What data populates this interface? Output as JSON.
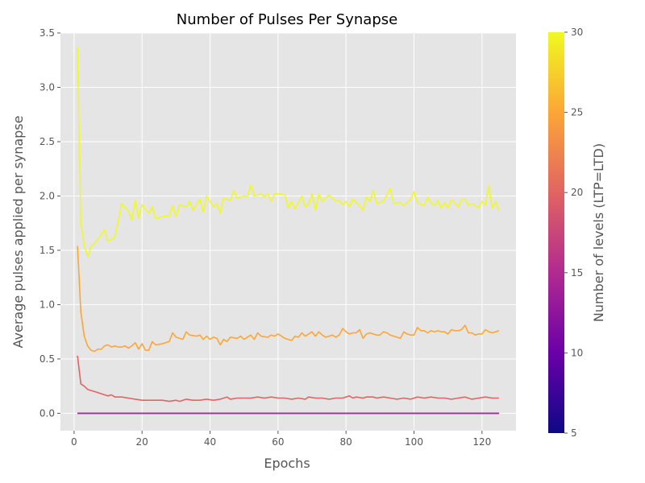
{
  "chart_data": {
    "type": "line",
    "title": "Number of Pulses Per Synapse",
    "xlabel": "Epochs",
    "ylabel": "Average pulses applied per synapse",
    "xlim": [
      -4,
      130
    ],
    "ylim": [
      -0.16,
      3.5
    ],
    "x_ticks": [
      0,
      20,
      40,
      60,
      80,
      100,
      120
    ],
    "x_tick_labels": [
      "0",
      "20",
      "40",
      "60",
      "80",
      "100",
      "120"
    ],
    "y_ticks": [
      0,
      0.5,
      1,
      1.5,
      2,
      2.5,
      3,
      3.5
    ],
    "y_tick_labels": [
      "0.0",
      "0.5",
      "1.0",
      "1.5",
      "2.0",
      "2.5",
      "3.0",
      "3.5"
    ],
    "grid": true,
    "background": "#e5e5e5",
    "colorbar": {
      "label": "Number of levels (LTP=LTD)",
      "colormap": "plasma",
      "range": [
        5,
        30
      ],
      "ticks": [
        5,
        10,
        15,
        20,
        25,
        30
      ],
      "tick_labels": [
        "5",
        "10",
        "15",
        "20",
        "25",
        "30"
      ],
      "stops": [
        "#0d0887",
        "#6a00a8",
        "#b12a90",
        "#e16462",
        "#fca636",
        "#f0f921"
      ]
    },
    "series": [
      {
        "levels": 30,
        "color": "#f0f921",
        "keypoints": [
          [
            1,
            3.37
          ],
          [
            2,
            1.75
          ],
          [
            3,
            1.55
          ],
          [
            4,
            1.44
          ],
          [
            5,
            1.53
          ],
          [
            7,
            1.6
          ],
          [
            9,
            1.69
          ],
          [
            10,
            1.58
          ],
          [
            12,
            1.62
          ],
          [
            14,
            1.93
          ],
          [
            16,
            1.86
          ],
          [
            17,
            1.78
          ],
          [
            18,
            1.96
          ],
          [
            19,
            1.79
          ],
          [
            20,
            1.92
          ],
          [
            22,
            1.84
          ],
          [
            23,
            1.9
          ],
          [
            24,
            1.79
          ],
          [
            26,
            1.81
          ],
          [
            28,
            1.82
          ],
          [
            29,
            1.91
          ],
          [
            30,
            1.81
          ],
          [
            31,
            1.92
          ],
          [
            33,
            1.9
          ],
          [
            34,
            1.95
          ],
          [
            35,
            1.87
          ],
          [
            37,
            1.97
          ],
          [
            38,
            1.85
          ],
          [
            39,
            2.0
          ],
          [
            41,
            1.9
          ],
          [
            42,
            1.93
          ],
          [
            43,
            1.84
          ],
          [
            44,
            1.98
          ],
          [
            46,
            1.96
          ],
          [
            47,
            2.05
          ],
          [
            48,
            1.98
          ],
          [
            50,
            2.0
          ],
          [
            51,
            1.99
          ],
          [
            52,
            2.1
          ],
          [
            53,
            2.0
          ],
          [
            55,
            2.02
          ],
          [
            56,
            1.99
          ],
          [
            57,
            2.02
          ],
          [
            58,
            1.95
          ],
          [
            59,
            2.02
          ],
          [
            61,
            2.02
          ],
          [
            62,
            2.01
          ],
          [
            63,
            1.89
          ],
          [
            64,
            1.95
          ],
          [
            65,
            1.88
          ],
          [
            67,
            2.0
          ],
          [
            68,
            1.9
          ],
          [
            69,
            1.92
          ],
          [
            70,
            2.02
          ],
          [
            71,
            1.87
          ],
          [
            72,
            2.02
          ],
          [
            73,
            1.95
          ],
          [
            75,
            2.01
          ],
          [
            77,
            1.95
          ],
          [
            78,
            1.96
          ],
          [
            79,
            1.92
          ],
          [
            80,
            1.95
          ],
          [
            81,
            1.9
          ],
          [
            82,
            1.97
          ],
          [
            84,
            1.91
          ],
          [
            85,
            1.87
          ],
          [
            86,
            1.99
          ],
          [
            87,
            1.95
          ],
          [
            88,
            2.05
          ],
          [
            89,
            1.93
          ],
          [
            91,
            1.95
          ],
          [
            93,
            2.07
          ],
          [
            94,
            1.93
          ],
          [
            96,
            1.94
          ],
          [
            97,
            1.91
          ],
          [
            99,
            1.97
          ],
          [
            100,
            2.04
          ],
          [
            101,
            1.94
          ],
          [
            103,
            1.91
          ],
          [
            104,
            1.99
          ],
          [
            105,
            1.94
          ],
          [
            106,
            1.91
          ],
          [
            107,
            1.96
          ],
          [
            108,
            1.89
          ],
          [
            109,
            1.94
          ],
          [
            110,
            1.89
          ],
          [
            111,
            1.97
          ],
          [
            113,
            1.9
          ],
          [
            114,
            1.97
          ],
          [
            115,
            1.97
          ],
          [
            116,
            1.91
          ],
          [
            117,
            1.93
          ],
          [
            119,
            1.89
          ],
          [
            120,
            1.95
          ],
          [
            121,
            1.92
          ],
          [
            122,
            2.1
          ],
          [
            123,
            1.89
          ],
          [
            124,
            1.95
          ],
          [
            125,
            1.87
          ]
        ]
      },
      {
        "levels": 25,
        "color": "#fca636",
        "keypoints": [
          [
            1,
            1.54
          ],
          [
            2,
            0.93
          ],
          [
            3,
            0.71
          ],
          [
            4,
            0.62
          ],
          [
            5,
            0.58
          ],
          [
            6,
            0.57
          ],
          [
            7,
            0.59
          ],
          [
            8,
            0.59
          ],
          [
            9,
            0.62
          ],
          [
            10,
            0.63
          ],
          [
            11,
            0.61
          ],
          [
            12,
            0.62
          ],
          [
            13,
            0.61
          ],
          [
            14,
            0.61
          ],
          [
            15,
            0.62
          ],
          [
            16,
            0.6
          ],
          [
            17,
            0.62
          ],
          [
            18,
            0.65
          ],
          [
            19,
            0.59
          ],
          [
            20,
            0.64
          ],
          [
            21,
            0.58
          ],
          [
            22,
            0.58
          ],
          [
            23,
            0.66
          ],
          [
            24,
            0.63
          ],
          [
            26,
            0.64
          ],
          [
            28,
            0.66
          ],
          [
            29,
            0.74
          ],
          [
            30,
            0.7
          ],
          [
            32,
            0.68
          ],
          [
            33,
            0.75
          ],
          [
            34,
            0.72
          ],
          [
            36,
            0.71
          ],
          [
            37,
            0.72
          ],
          [
            38,
            0.68
          ],
          [
            39,
            0.71
          ],
          [
            40,
            0.68
          ],
          [
            41,
            0.7
          ],
          [
            42,
            0.69
          ],
          [
            43,
            0.63
          ],
          [
            44,
            0.68
          ],
          [
            45,
            0.66
          ],
          [
            46,
            0.7
          ],
          [
            48,
            0.69
          ],
          [
            49,
            0.71
          ],
          [
            50,
            0.68
          ],
          [
            52,
            0.72
          ],
          [
            53,
            0.68
          ],
          [
            54,
            0.74
          ],
          [
            55,
            0.71
          ],
          [
            57,
            0.7
          ],
          [
            58,
            0.72
          ],
          [
            59,
            0.71
          ],
          [
            60,
            0.73
          ],
          [
            62,
            0.69
          ],
          [
            63,
            0.68
          ],
          [
            64,
            0.67
          ],
          [
            65,
            0.71
          ],
          [
            66,
            0.7
          ],
          [
            67,
            0.74
          ],
          [
            68,
            0.71
          ],
          [
            69,
            0.73
          ],
          [
            70,
            0.75
          ],
          [
            71,
            0.71
          ],
          [
            72,
            0.75
          ],
          [
            73,
            0.72
          ],
          [
            74,
            0.7
          ],
          [
            75,
            0.71
          ],
          [
            76,
            0.72
          ],
          [
            77,
            0.7
          ],
          [
            78,
            0.72
          ],
          [
            79,
            0.78
          ],
          [
            80,
            0.75
          ],
          [
            81,
            0.73
          ],
          [
            82,
            0.74
          ],
          [
            83,
            0.74
          ],
          [
            84,
            0.77
          ],
          [
            85,
            0.69
          ],
          [
            86,
            0.73
          ],
          [
            87,
            0.74
          ],
          [
            88,
            0.73
          ],
          [
            89,
            0.72
          ],
          [
            90,
            0.72
          ],
          [
            91,
            0.75
          ],
          [
            92,
            0.74
          ],
          [
            93,
            0.72
          ],
          [
            94,
            0.71
          ],
          [
            95,
            0.7
          ],
          [
            96,
            0.69
          ],
          [
            97,
            0.75
          ],
          [
            98,
            0.73
          ],
          [
            99,
            0.72
          ],
          [
            100,
            0.72
          ],
          [
            101,
            0.79
          ],
          [
            102,
            0.76
          ],
          [
            103,
            0.76
          ],
          [
            104,
            0.74
          ],
          [
            105,
            0.76
          ],
          [
            106,
            0.75
          ],
          [
            107,
            0.76
          ],
          [
            108,
            0.75
          ],
          [
            109,
            0.75
          ],
          [
            110,
            0.73
          ],
          [
            111,
            0.77
          ],
          [
            112,
            0.76
          ],
          [
            113,
            0.76
          ],
          [
            114,
            0.77
          ],
          [
            115,
            0.81
          ],
          [
            116,
            0.74
          ],
          [
            117,
            0.74
          ],
          [
            118,
            0.72
          ],
          [
            119,
            0.73
          ],
          [
            120,
            0.73
          ],
          [
            121,
            0.77
          ],
          [
            122,
            0.75
          ],
          [
            123,
            0.74
          ],
          [
            124,
            0.75
          ],
          [
            125,
            0.76
          ]
        ]
      },
      {
        "levels": 20,
        "color": "#e16462",
        "keypoints": [
          [
            1,
            0.53
          ],
          [
            2,
            0.27
          ],
          [
            3,
            0.25
          ],
          [
            4,
            0.22
          ],
          [
            5,
            0.21
          ],
          [
            6,
            0.2
          ],
          [
            7,
            0.19
          ],
          [
            8,
            0.18
          ],
          [
            9,
            0.17
          ],
          [
            10,
            0.16
          ],
          [
            11,
            0.17
          ],
          [
            12,
            0.15
          ],
          [
            14,
            0.15
          ],
          [
            16,
            0.14
          ],
          [
            18,
            0.13
          ],
          [
            20,
            0.12
          ],
          [
            22,
            0.12
          ],
          [
            24,
            0.12
          ],
          [
            26,
            0.12
          ],
          [
            28,
            0.11
          ],
          [
            30,
            0.12
          ],
          [
            31,
            0.11
          ],
          [
            33,
            0.13
          ],
          [
            35,
            0.12
          ],
          [
            37,
            0.12
          ],
          [
            39,
            0.13
          ],
          [
            41,
            0.12
          ],
          [
            43,
            0.13
          ],
          [
            45,
            0.15
          ],
          [
            46,
            0.13
          ],
          [
            48,
            0.14
          ],
          [
            50,
            0.14
          ],
          [
            52,
            0.14
          ],
          [
            54,
            0.15
          ],
          [
            56,
            0.14
          ],
          [
            58,
            0.15
          ],
          [
            60,
            0.14
          ],
          [
            62,
            0.14
          ],
          [
            64,
            0.13
          ],
          [
            66,
            0.14
          ],
          [
            68,
            0.13
          ],
          [
            69,
            0.15
          ],
          [
            71,
            0.14
          ],
          [
            73,
            0.14
          ],
          [
            75,
            0.13
          ],
          [
            77,
            0.14
          ],
          [
            79,
            0.14
          ],
          [
            81,
            0.16
          ],
          [
            82,
            0.14
          ],
          [
            83,
            0.15
          ],
          [
            85,
            0.14
          ],
          [
            86,
            0.15
          ],
          [
            88,
            0.15
          ],
          [
            89,
            0.14
          ],
          [
            91,
            0.15
          ],
          [
            93,
            0.14
          ],
          [
            95,
            0.13
          ],
          [
            97,
            0.14
          ],
          [
            99,
            0.13
          ],
          [
            101,
            0.15
          ],
          [
            103,
            0.14
          ],
          [
            105,
            0.15
          ],
          [
            107,
            0.14
          ],
          [
            109,
            0.14
          ],
          [
            111,
            0.13
          ],
          [
            113,
            0.14
          ],
          [
            115,
            0.15
          ],
          [
            117,
            0.13
          ],
          [
            119,
            0.14
          ],
          [
            121,
            0.15
          ],
          [
            123,
            0.14
          ],
          [
            125,
            0.14
          ]
        ]
      },
      {
        "levels": 15,
        "color": "#b12a90",
        "keypoints": [
          [
            1,
            0.0
          ],
          [
            125,
            0.0
          ]
        ]
      },
      {
        "levels": 10,
        "color": "#6a00a8",
        "keypoints": [
          [
            1,
            0.0
          ],
          [
            125,
            0.0
          ]
        ]
      }
    ]
  }
}
